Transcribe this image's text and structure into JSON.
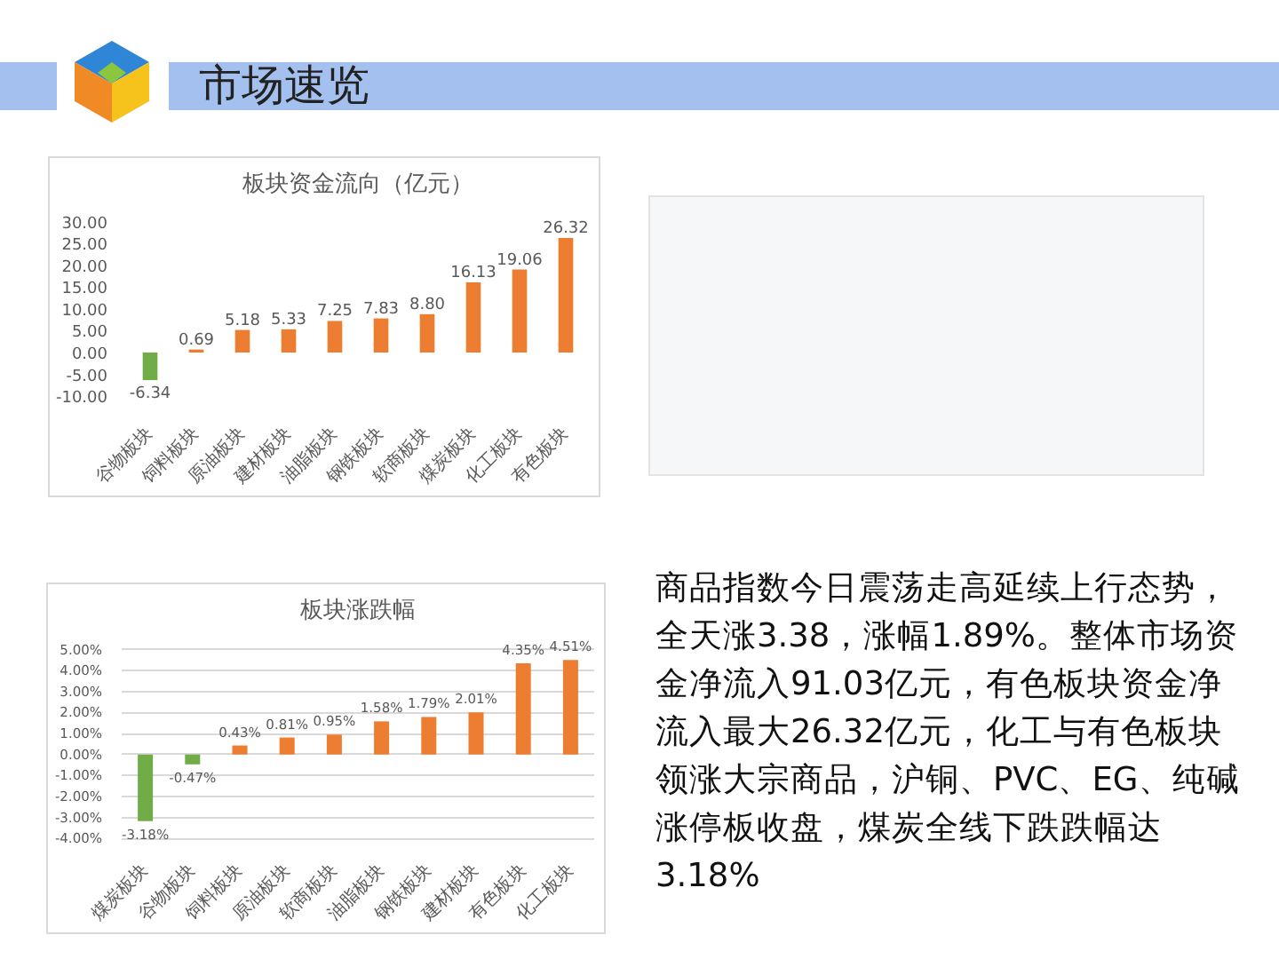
{
  "chart_data": [
    {
      "type": "other",
      "title": "市场速览"
    },
    {
      "type": "bar",
      "title": "板块资金流向（亿元）",
      "categories": [
        "谷物板块",
        "饲料板块",
        "原油板块",
        "建材板块",
        "油脂板块",
        "钢铁板块",
        "软商板块",
        "煤炭板块",
        "化工板块",
        "有色板块"
      ],
      "values": [
        -6.34,
        0.69,
        5.18,
        5.33,
        7.25,
        7.83,
        8.8,
        16.13,
        19.06,
        26.32
      ],
      "colors": [
        "#70ad47",
        "#ed7d31",
        "#ed7d31",
        "#ed7d31",
        "#ed7d31",
        "#ed7d31",
        "#ed7d31",
        "#ed7d31",
        "#ed7d31",
        "#ed7d31"
      ],
      "value_labels": [
        "-6.34",
        "0.69",
        "5.18",
        "5.33",
        "7.25",
        "7.83",
        "8.80",
        "16.13",
        "19.06",
        "26.32"
      ],
      "ylim": [
        -10,
        30
      ],
      "yticks": [
        {
          "value": -10,
          "label": "-10.00"
        },
        {
          "value": -5,
          "label": "-5.00"
        },
        {
          "value": 0,
          "label": "0.00"
        },
        {
          "value": 5,
          "label": "5.00"
        },
        {
          "value": 10,
          "label": "10.00"
        },
        {
          "value": 15,
          "label": "15.00"
        },
        {
          "value": 20,
          "label": "20.00"
        },
        {
          "value": 25,
          "label": "25.00"
        },
        {
          "value": 30,
          "label": "30.00"
        }
      ]
    },
    {
      "type": "bar",
      "title": "板块涨跌幅",
      "categories": [
        "煤炭板块",
        "谷物板块",
        "饲料板块",
        "原油板块",
        "软商板块",
        "油脂板块",
        "钢铁板块",
        "建材板块",
        "有色板块",
        "化工板块"
      ],
      "values": [
        -3.18,
        -0.47,
        0.43,
        0.81,
        0.95,
        1.58,
        1.79,
        2.01,
        4.35,
        4.51
      ],
      "colors": [
        "#70ad47",
        "#70ad47",
        "#ed7d31",
        "#ed7d31",
        "#ed7d31",
        "#ed7d31",
        "#ed7d31",
        "#ed7d31",
        "#ed7d31",
        "#ed7d31"
      ],
      "value_labels": [
        "-3.18%",
        "-0.47%",
        "0.43%",
        "0.81%",
        "0.95%",
        "1.58%",
        "1.79%",
        "2.01%",
        "4.35%",
        "4.51%"
      ],
      "ylim": [
        -4,
        5
      ],
      "yticks": [
        {
          "value": -4,
          "label": "-4.00%"
        },
        {
          "value": -3,
          "label": "-3.00%"
        },
        {
          "value": -2,
          "label": "-2.00%"
        },
        {
          "value": -1,
          "label": "-1.00%"
        },
        {
          "value": 0,
          "label": "0.00%"
        },
        {
          "value": 1,
          "label": "1.00%"
        },
        {
          "value": 2,
          "label": "2.00%"
        },
        {
          "value": 3,
          "label": "3.00%"
        },
        {
          "value": 4,
          "label": "4.00%"
        },
        {
          "value": 5,
          "label": "5.00%"
        }
      ],
      "grid": "y"
    },
    {
      "type": "other",
      "annotations": [
        "商品指数今日震荡走高延续上行态势，全天涨3.38，涨幅1.89%。整体市场资金净流入91.03亿元，有色板块资金净流入最大26.32亿元，化工与有色板块领涨大宗商品，沪铜、PVC、EG、纯碱涨停板收盘，煤炭全线下跌跌幅达3.18%"
      ]
    }
  ]
}
